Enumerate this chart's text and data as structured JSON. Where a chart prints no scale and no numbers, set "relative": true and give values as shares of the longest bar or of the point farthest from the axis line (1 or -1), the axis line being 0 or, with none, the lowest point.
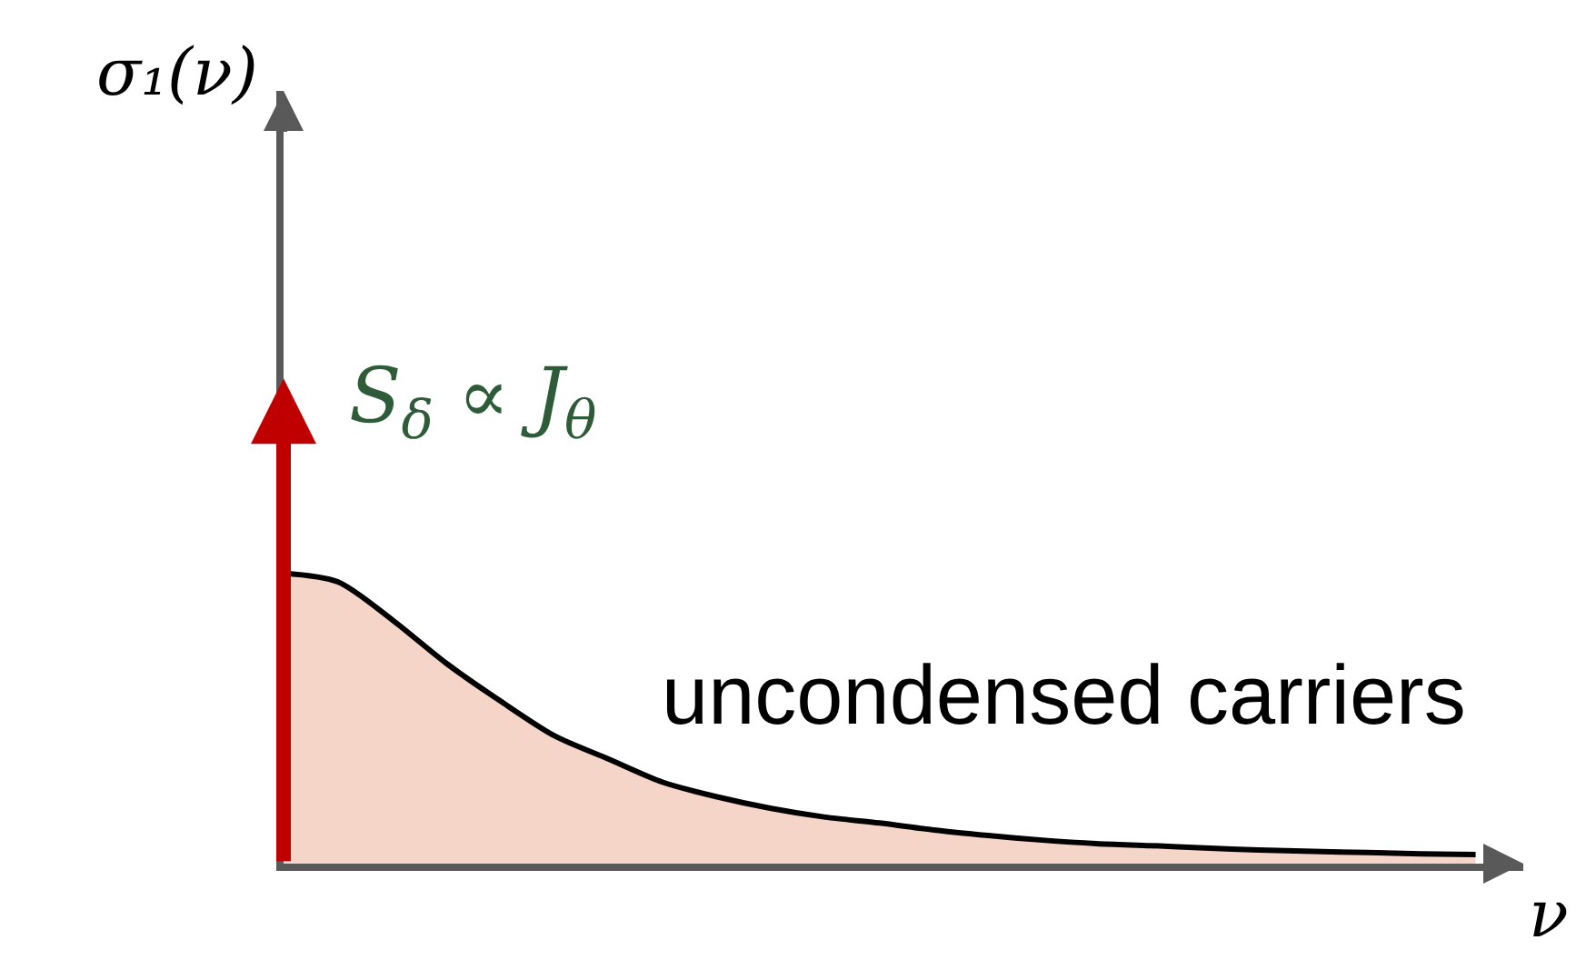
{
  "chart_data": {
    "type": "area",
    "relative": true,
    "xlabel": "ν",
    "categories": [
      null,
      null,
      null,
      null,
      null,
      null,
      null,
      null,
      null,
      null,
      null,
      null,
      null,
      null,
      null,
      null,
      null,
      null,
      null,
      null,
      null,
      null,
      null
    ],
    "series": [
      {
        "name": "uncondensed carriers",
        "color": "#f5d5c8",
        "values": [
          1.0,
          0.97,
          0.84,
          0.69,
          0.56,
          0.44,
          0.36,
          0.28,
          0.23,
          0.19,
          0.16,
          0.14,
          0.116,
          0.097,
          0.081,
          0.069,
          0.062,
          0.054,
          0.047,
          0.042,
          0.038,
          0.034,
          0.031
        ]
      }
    ],
    "annotations": [
      "S$_{δ}$ ∝ J$_{θ}$",
      "σ₁(ν)"
    ]
  }
}
